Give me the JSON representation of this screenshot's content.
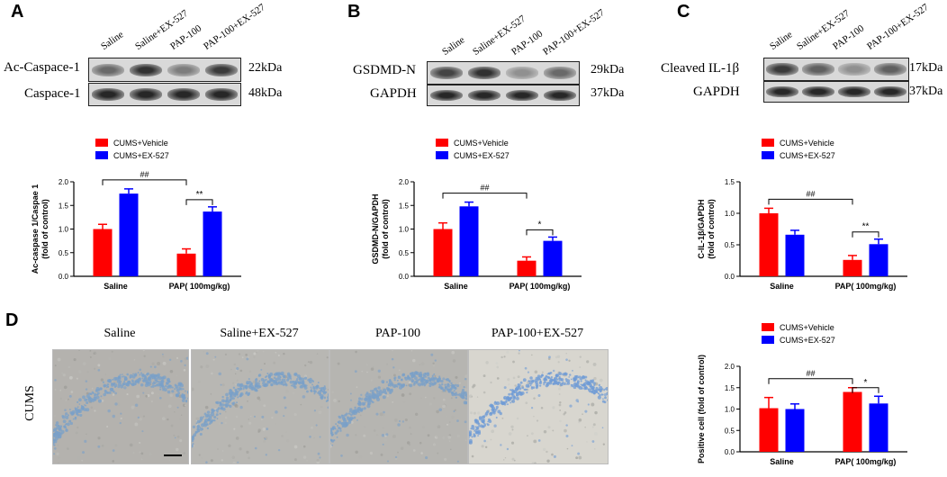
{
  "panels": {
    "A": {
      "letter": "A",
      "lanes": [
        "Saline",
        "Saline+EX-527",
        "PAP-100",
        "PAP-100+EX-527"
      ],
      "rows": [
        {
          "protein": "Ac-Caspace-1",
          "kda": "22kDa",
          "intensity": [
            0.55,
            0.85,
            0.45,
            0.8
          ]
        },
        {
          "protein": "Caspace-1",
          "kda": "48kDa",
          "intensity": [
            0.9,
            0.9,
            0.9,
            0.9
          ]
        }
      ]
    },
    "B": {
      "letter": "B",
      "lanes": [
        "Saline",
        "Saline+EX-527",
        "PAP-100",
        "PAP-100+EX-527"
      ],
      "rows": [
        {
          "protein": "GSDMD-N",
          "kda": "29kDa",
          "intensity": [
            0.75,
            0.85,
            0.35,
            0.55
          ]
        },
        {
          "protein": "GAPDH",
          "kda": "37kDa",
          "intensity": [
            0.9,
            0.9,
            0.9,
            0.9
          ]
        }
      ]
    },
    "C": {
      "letter": "C",
      "lanes": [
        "Saline",
        "Saline+EX-527",
        "PAP-100",
        "PAP-100+EX-527"
      ],
      "rows": [
        {
          "protein": "Cleaved IL-1β",
          "kda": "17kDa",
          "intensity": [
            0.8,
            0.6,
            0.35,
            0.6
          ]
        },
        {
          "protein": "GAPDH",
          "kda": "37kDa",
          "intensity": [
            0.9,
            0.9,
            0.9,
            0.9
          ]
        }
      ]
    },
    "D": {
      "letter": "D",
      "row_label": "CUMS",
      "titles": [
        "Saline",
        "Saline+EX-527",
        "PAP-100",
        "PAP-100+EX-527"
      ]
    }
  },
  "chart_data": [
    {
      "type": "bar",
      "categories": [
        "Saline",
        "PAP( 100mg/kg)"
      ],
      "series": [
        {
          "name": "CUMS+Vehicle",
          "color": "#ff0000",
          "values": [
            1.0,
            0.48
          ],
          "errors": [
            0.1,
            0.1
          ]
        },
        {
          "name": "CUMS+EX-527",
          "color": "#0000ff",
          "values": [
            1.75,
            1.37
          ],
          "errors": [
            0.1,
            0.1
          ]
        }
      ],
      "ylabel": "Ac-caspase 1/Caspae 1\n(fold of control)",
      "ylim": [
        0,
        2.0
      ],
      "yticks": [
        "0.0",
        "0.5",
        "1.0",
        "1.5",
        "2.0"
      ],
      "legend": "top-left",
      "annotations": [
        "##",
        "**"
      ]
    },
    {
      "type": "bar",
      "categories": [
        "Saline",
        "PAP( 100mg/kg)"
      ],
      "series": [
        {
          "name": "CUMS+Vehicle",
          "color": "#ff0000",
          "values": [
            1.0,
            0.33
          ],
          "errors": [
            0.13,
            0.08
          ]
        },
        {
          "name": "CUMS+EX-527",
          "color": "#0000ff",
          "values": [
            1.48,
            0.75
          ],
          "errors": [
            0.09,
            0.08
          ]
        }
      ],
      "ylabel": "GSDMD-N/GAPDH\n(fold of control)",
      "ylim": [
        0,
        2.0
      ],
      "yticks": [
        "0.0",
        "0.5",
        "1.0",
        "1.5",
        "2.0"
      ],
      "legend": "top-left",
      "annotations": [
        "##",
        "*"
      ]
    },
    {
      "type": "bar",
      "categories": [
        "Saline",
        "PAP( 100mg/kg)"
      ],
      "series": [
        {
          "name": "CUMS+Vehicle",
          "color": "#ff0000",
          "values": [
            1.0,
            0.26
          ],
          "errors": [
            0.08,
            0.07
          ]
        },
        {
          "name": "CUMS+EX-527",
          "color": "#0000ff",
          "values": [
            0.66,
            0.51
          ],
          "errors": [
            0.07,
            0.08
          ]
        }
      ],
      "ylabel": "C-IL-1β/GAPDH\n(fold of control)",
      "ylim": [
        0,
        1.5
      ],
      "yticks": [
        "0.0",
        "0.5",
        "1.0",
        "1.5"
      ],
      "legend": "top-left",
      "annotations": [
        "##",
        "**"
      ]
    },
    {
      "type": "bar",
      "categories": [
        "Saline",
        "PAP( 100mg/kg)"
      ],
      "series": [
        {
          "name": "CUMS+Vehicle",
          "color": "#ff0000",
          "values": [
            1.02,
            1.4
          ],
          "errors": [
            0.25,
            0.1
          ]
        },
        {
          "name": "CUMS+EX-527",
          "color": "#0000ff",
          "values": [
            1.0,
            1.13
          ],
          "errors": [
            0.12,
            0.17
          ]
        }
      ],
      "ylabel": "Positive cell (fold of control)",
      "ylim": [
        0,
        2.0
      ],
      "yticks": [
        "0.0",
        "0.5",
        "1.0",
        "1.5",
        "2.0"
      ],
      "legend": "top-left",
      "annotations": [
        "##",
        "*"
      ]
    }
  ]
}
